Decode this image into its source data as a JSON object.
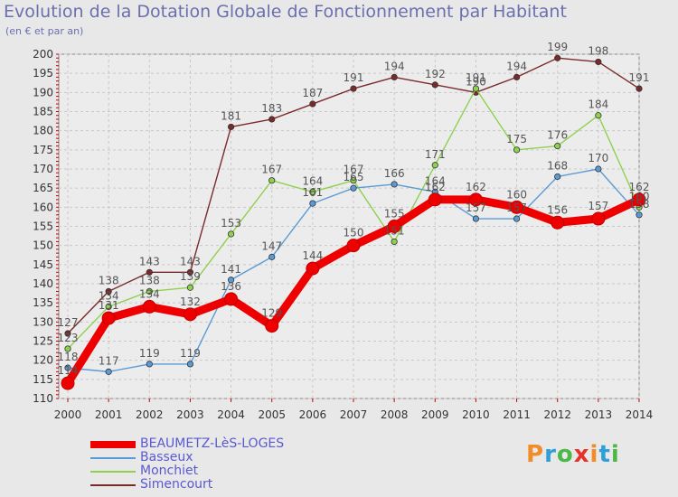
{
  "header": {
    "title": "Evolution de la Dotation Globale de Fonctionnement par Habitant",
    "subtitle": "(en € et par an)"
  },
  "logo": {
    "text": "Proxiti",
    "colors": [
      "#f28c28",
      "#2f9fd8",
      "#4cb848",
      "#e6332a"
    ]
  },
  "colors": {
    "title": "#6b6fae",
    "axis": "#333333",
    "grid": "#c8c8c8",
    "background": "#e8e8e8"
  },
  "chart_data": {
    "type": "line",
    "title": "Evolution de la Dotation Globale de Fonctionnement par Habitant",
    "subtitle": "(en € et par an)",
    "x": [
      2000,
      2001,
      2002,
      2003,
      2004,
      2005,
      2006,
      2007,
      2008,
      2009,
      2010,
      2011,
      2012,
      2013,
      2014
    ],
    "ylim": [
      110,
      200
    ],
    "yticks": [
      110,
      115,
      120,
      125,
      130,
      135,
      140,
      145,
      150,
      155,
      160,
      165,
      170,
      175,
      180,
      185,
      190,
      195,
      200
    ],
    "grid": true,
    "legend_placement": "bottom-left",
    "series": [
      {
        "name": "BEAUMETZ-LèS-LOGES",
        "color": "#ee0000",
        "values": [
          114,
          131,
          134,
          132,
          136,
          129,
          144,
          150,
          155,
          162,
          162,
          160,
          156,
          157,
          162
        ]
      },
      {
        "name": "Basseux",
        "color": "#5b9bd5",
        "values": [
          118,
          117,
          119,
          119,
          141,
          147,
          161,
          165,
          166,
          164,
          157,
          157,
          168,
          170,
          158
        ]
      },
      {
        "name": "Monchiet",
        "color": "#8fd14f",
        "values": [
          123,
          134,
          138,
          139,
          153,
          167,
          164,
          167,
          151,
          171,
          191,
          175,
          176,
          184,
          160
        ]
      },
      {
        "name": "Simencourt",
        "color": "#7a2a2a",
        "values": [
          127,
          138,
          143,
          143,
          181,
          183,
          187,
          191,
          194,
          192,
          190,
          194,
          199,
          198,
          191
        ]
      }
    ]
  }
}
